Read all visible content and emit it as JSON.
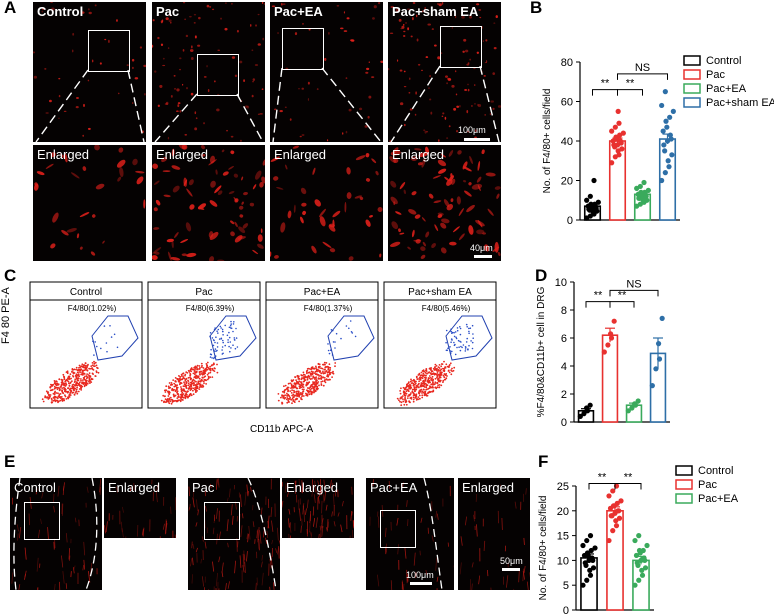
{
  "letters": {
    "a": "A",
    "b": "B",
    "c": "C",
    "d": "D",
    "e": "E",
    "f": "F"
  },
  "panelA": {
    "top_labels": [
      "Control",
      "Pac",
      "Pac+EA",
      "Pac+sham EA"
    ],
    "enlarged_label": "Enlarged",
    "scale_top": "100μm",
    "scale_bottom": "40μm"
  },
  "panelC": {
    "titles": [
      "Control",
      "Pac",
      "Pac+EA",
      "Pac+sham EA"
    ],
    "gates": [
      "F4/80(1.02%)",
      "F4/80(6.39%)",
      "F4/80(1.37%)",
      "F4/80(5.46%)"
    ],
    "ylabel": "F4 80 PE-A",
    "xlabel": "CD11b APC-A"
  },
  "panelE": {
    "labels": [
      "Control",
      "Pac",
      "Pac+EA"
    ],
    "enlarged_label": "Enlarged",
    "scale_main": "100μm",
    "scale_enl": "50μm"
  },
  "chart_data": [
    {
      "panel": "B",
      "type": "bar",
      "categories": [
        "Control",
        "Pac",
        "Pac+EA",
        "Pac+sham EA"
      ],
      "values": [
        7,
        40,
        13,
        41
      ],
      "errors": [
        1,
        1.5,
        1,
        2.5
      ],
      "colors": [
        "#000000",
        "#e8312f",
        "#3aaa5c",
        "#2e6fa7"
      ],
      "points": [
        [
          1,
          2,
          3,
          4,
          4.5,
          5,
          5.5,
          6,
          6,
          7,
          7,
          7.5,
          8,
          8,
          9,
          10,
          12,
          20
        ],
        [
          29,
          32,
          33,
          35,
          36,
          37,
          38,
          38,
          39,
          40,
          40,
          41,
          42,
          43,
          44,
          45,
          47,
          49,
          55
        ],
        [
          7,
          8,
          9,
          10,
          10,
          11,
          11,
          12,
          12,
          13,
          13,
          13,
          14,
          14,
          15,
          16,
          17,
          19
        ],
        [
          20,
          24,
          27,
          30,
          33,
          35,
          38,
          40,
          41,
          43,
          45,
          47,
          50,
          52,
          55,
          58,
          65
        ]
      ],
      "ylabel": "No. of F4/80+ cells/field",
      "ylim": [
        0,
        80
      ],
      "yticks": [
        0,
        20,
        40,
        60,
        80
      ],
      "sig": [
        "**",
        "**",
        "NS"
      ],
      "legend": [
        "Control",
        "Pac",
        "Pac+EA",
        "Pac+sham EA"
      ],
      "legend_position": "right"
    },
    {
      "panel": "D",
      "type": "bar",
      "categories": [
        "Control",
        "Pac",
        "Pac+EA",
        "Pac+sham EA"
      ],
      "values": [
        0.8,
        6.2,
        1.2,
        4.9
      ],
      "errors": [
        0.15,
        0.5,
        0.15,
        1.1
      ],
      "colors": [
        "#000000",
        "#e8312f",
        "#3aaa5c",
        "#2e6fa7"
      ],
      "points": [
        [
          0.4,
          0.6,
          0.8,
          1.0,
          1.2
        ],
        [
          5.0,
          5.5,
          6.0,
          6.3,
          7.2
        ],
        [
          0.8,
          1.0,
          1.2,
          1.3,
          1.5
        ],
        [
          2.6,
          3.8,
          4.5,
          5.6,
          7.4
        ]
      ],
      "ylabel": "%F4/80&CD11b+ cell in DRG",
      "ylim": [
        0,
        10
      ],
      "yticks": [
        0,
        2,
        4,
        6,
        8,
        10
      ],
      "sig": [
        "**",
        "**",
        "NS"
      ]
    },
    {
      "panel": "F",
      "type": "bar",
      "categories": [
        "Control",
        "Pac",
        "Pac+EA"
      ],
      "values": [
        10.5,
        20,
        10
      ],
      "errors": [
        0.8,
        0.8,
        0.8
      ],
      "colors": [
        "#000000",
        "#e8312f",
        "#3aaa5c"
      ],
      "points": [
        [
          5,
          6,
          7,
          8,
          8.5,
          9,
          9.5,
          10,
          10,
          10.5,
          11,
          11,
          11.5,
          12,
          12.5,
          13,
          14,
          15
        ],
        [
          14,
          16,
          17,
          18,
          18.5,
          19,
          19,
          19.5,
          20,
          20,
          20.5,
          21,
          21,
          21.5,
          22,
          23,
          24,
          25
        ],
        [
          5,
          6,
          7,
          8,
          8.5,
          9,
          9.5,
          10,
          10,
          10.5,
          11,
          11.5,
          12,
          12,
          13,
          14,
          15
        ]
      ],
      "ylabel": "No. of F4/80+ cells/field",
      "ylim": [
        0,
        25
      ],
      "yticks": [
        0,
        5,
        10,
        15,
        20,
        25
      ],
      "sig": [
        "**",
        "**"
      ],
      "legend": [
        "Control",
        "Pac",
        "Pac+EA"
      ],
      "legend_position": "right"
    }
  ]
}
